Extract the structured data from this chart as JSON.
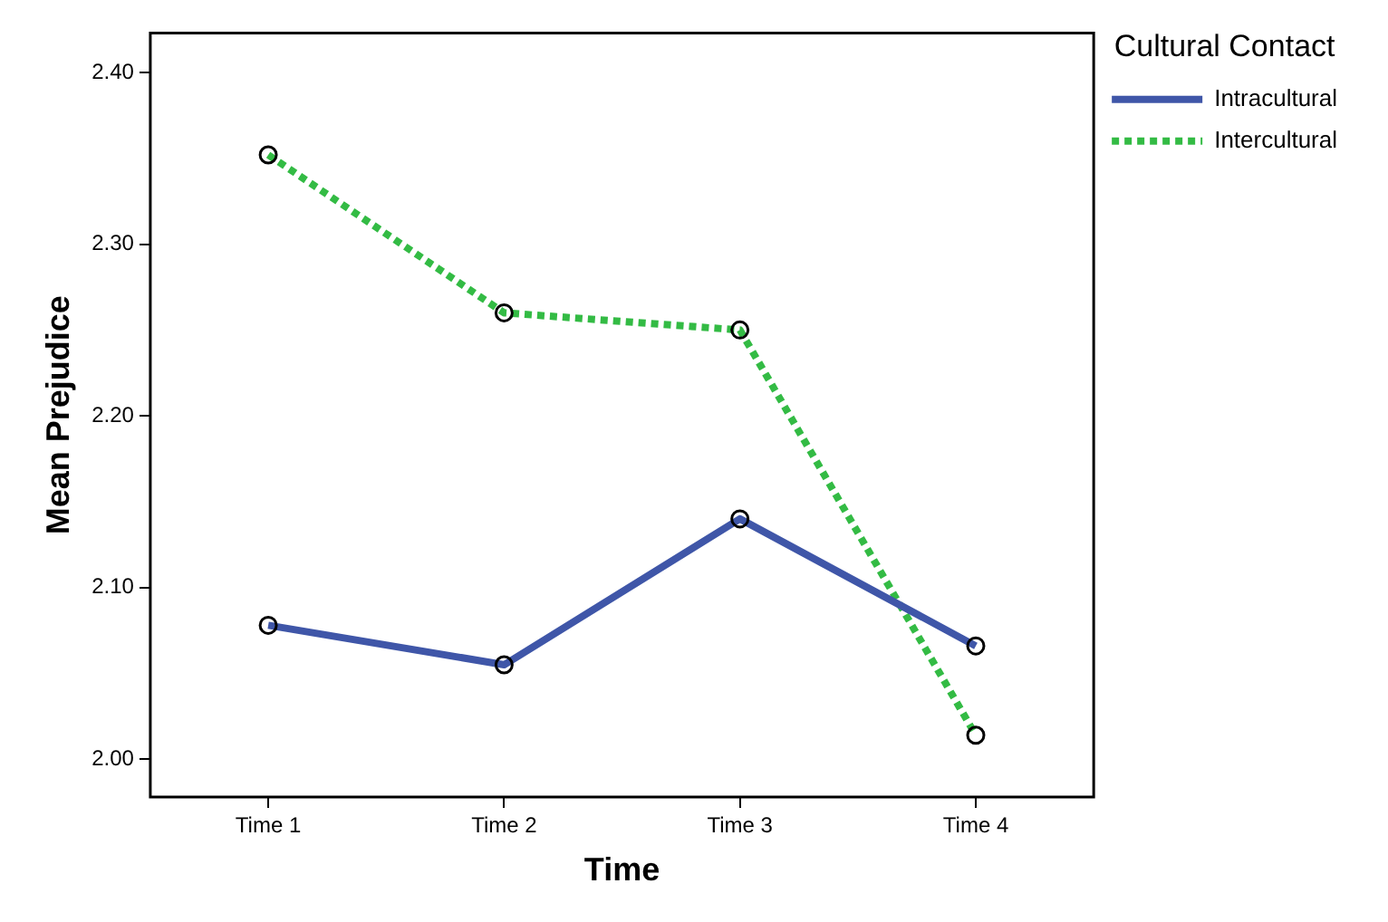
{
  "chart_data": {
    "type": "line",
    "xlabel": "Time",
    "ylabel": "Mean Prejudice",
    "legend_title": "Cultural Contact",
    "categories": [
      "Time 1",
      "Time 2",
      "Time 3",
      "Time 4"
    ],
    "series": [
      {
        "name": "Intracultural",
        "color": "#3f56a8",
        "values": [
          2.078,
          2.055,
          2.14,
          2.066
        ],
        "line_style": "solid"
      },
      {
        "name": "Intercultural",
        "color": "#33bb44",
        "values": [
          2.352,
          2.26,
          2.25,
          2.014
        ],
        "line_style": "dotted"
      }
    ],
    "ylim": [
      1.978,
      2.423
    ],
    "yticks": [
      {
        "value": 2.0,
        "label": "2.00"
      },
      {
        "value": 2.1,
        "label": "2.10"
      },
      {
        "value": 2.2,
        "label": "2.20"
      },
      {
        "value": 2.3,
        "label": "2.30"
      },
      {
        "value": 2.4,
        "label": "2.40"
      }
    ],
    "grid": false,
    "legend": "right",
    "marker": "circle"
  }
}
